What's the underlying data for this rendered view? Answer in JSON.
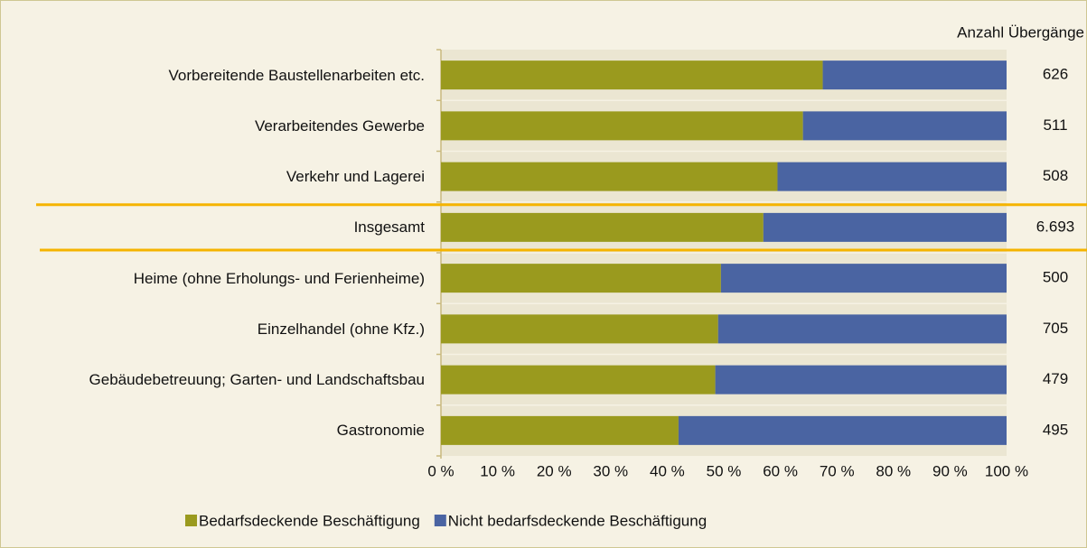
{
  "chart_data": {
    "type": "stacked_barh",
    "categories": [
      "Vorbereitende Baustellenarbeiten etc.",
      "Verarbeitendes Gewerbe",
      "Verkehr und Lagerei",
      "Insgesamt",
      "Heime (ohne Erholungs- und Ferienheime)",
      "Einzelhandel (ohne Kfz.)",
      "Gebäudebetreuung; Garten- und Landschaftsbau",
      "Gastronomie"
    ],
    "series": [
      {
        "name": "Bedarfsdeckende Beschäftigung",
        "color": "#9a9a1e",
        "values": [
          67.5,
          64,
          59.5,
          57,
          49.5,
          49,
          48.5,
          42
        ]
      },
      {
        "name": "Nicht bedarfsdeckende Beschäftigung",
        "color": "#4a64a2",
        "values": [
          32.5,
          36,
          40.5,
          43,
          50.5,
          51,
          51.5,
          58
        ]
      }
    ],
    "xlim": [
      0,
      100
    ],
    "xticks": [
      {
        "value": 0,
        "label": "0 %"
      },
      {
        "value": 10,
        "label": "10 %"
      },
      {
        "value": 20,
        "label": "20 %"
      },
      {
        "value": 30,
        "label": "30 %"
      },
      {
        "value": 40,
        "label": "40 %"
      },
      {
        "value": 50,
        "label": "50 %"
      },
      {
        "value": 60,
        "label": "60 %"
      },
      {
        "value": 70,
        "label": "70 %"
      },
      {
        "value": 80,
        "label": "80 %"
      },
      {
        "value": 90,
        "label": "90 %"
      },
      {
        "value": 100,
        "label": "100 %"
      }
    ],
    "counts_title": "Anzahl Übergänge",
    "counts": [
      626,
      511,
      508,
      6693,
      500,
      705,
      479,
      495
    ],
    "count_labels": [
      "626",
      "511",
      "508",
      "6.693",
      "500",
      "705",
      "479",
      "495"
    ],
    "legend": "bottom"
  }
}
